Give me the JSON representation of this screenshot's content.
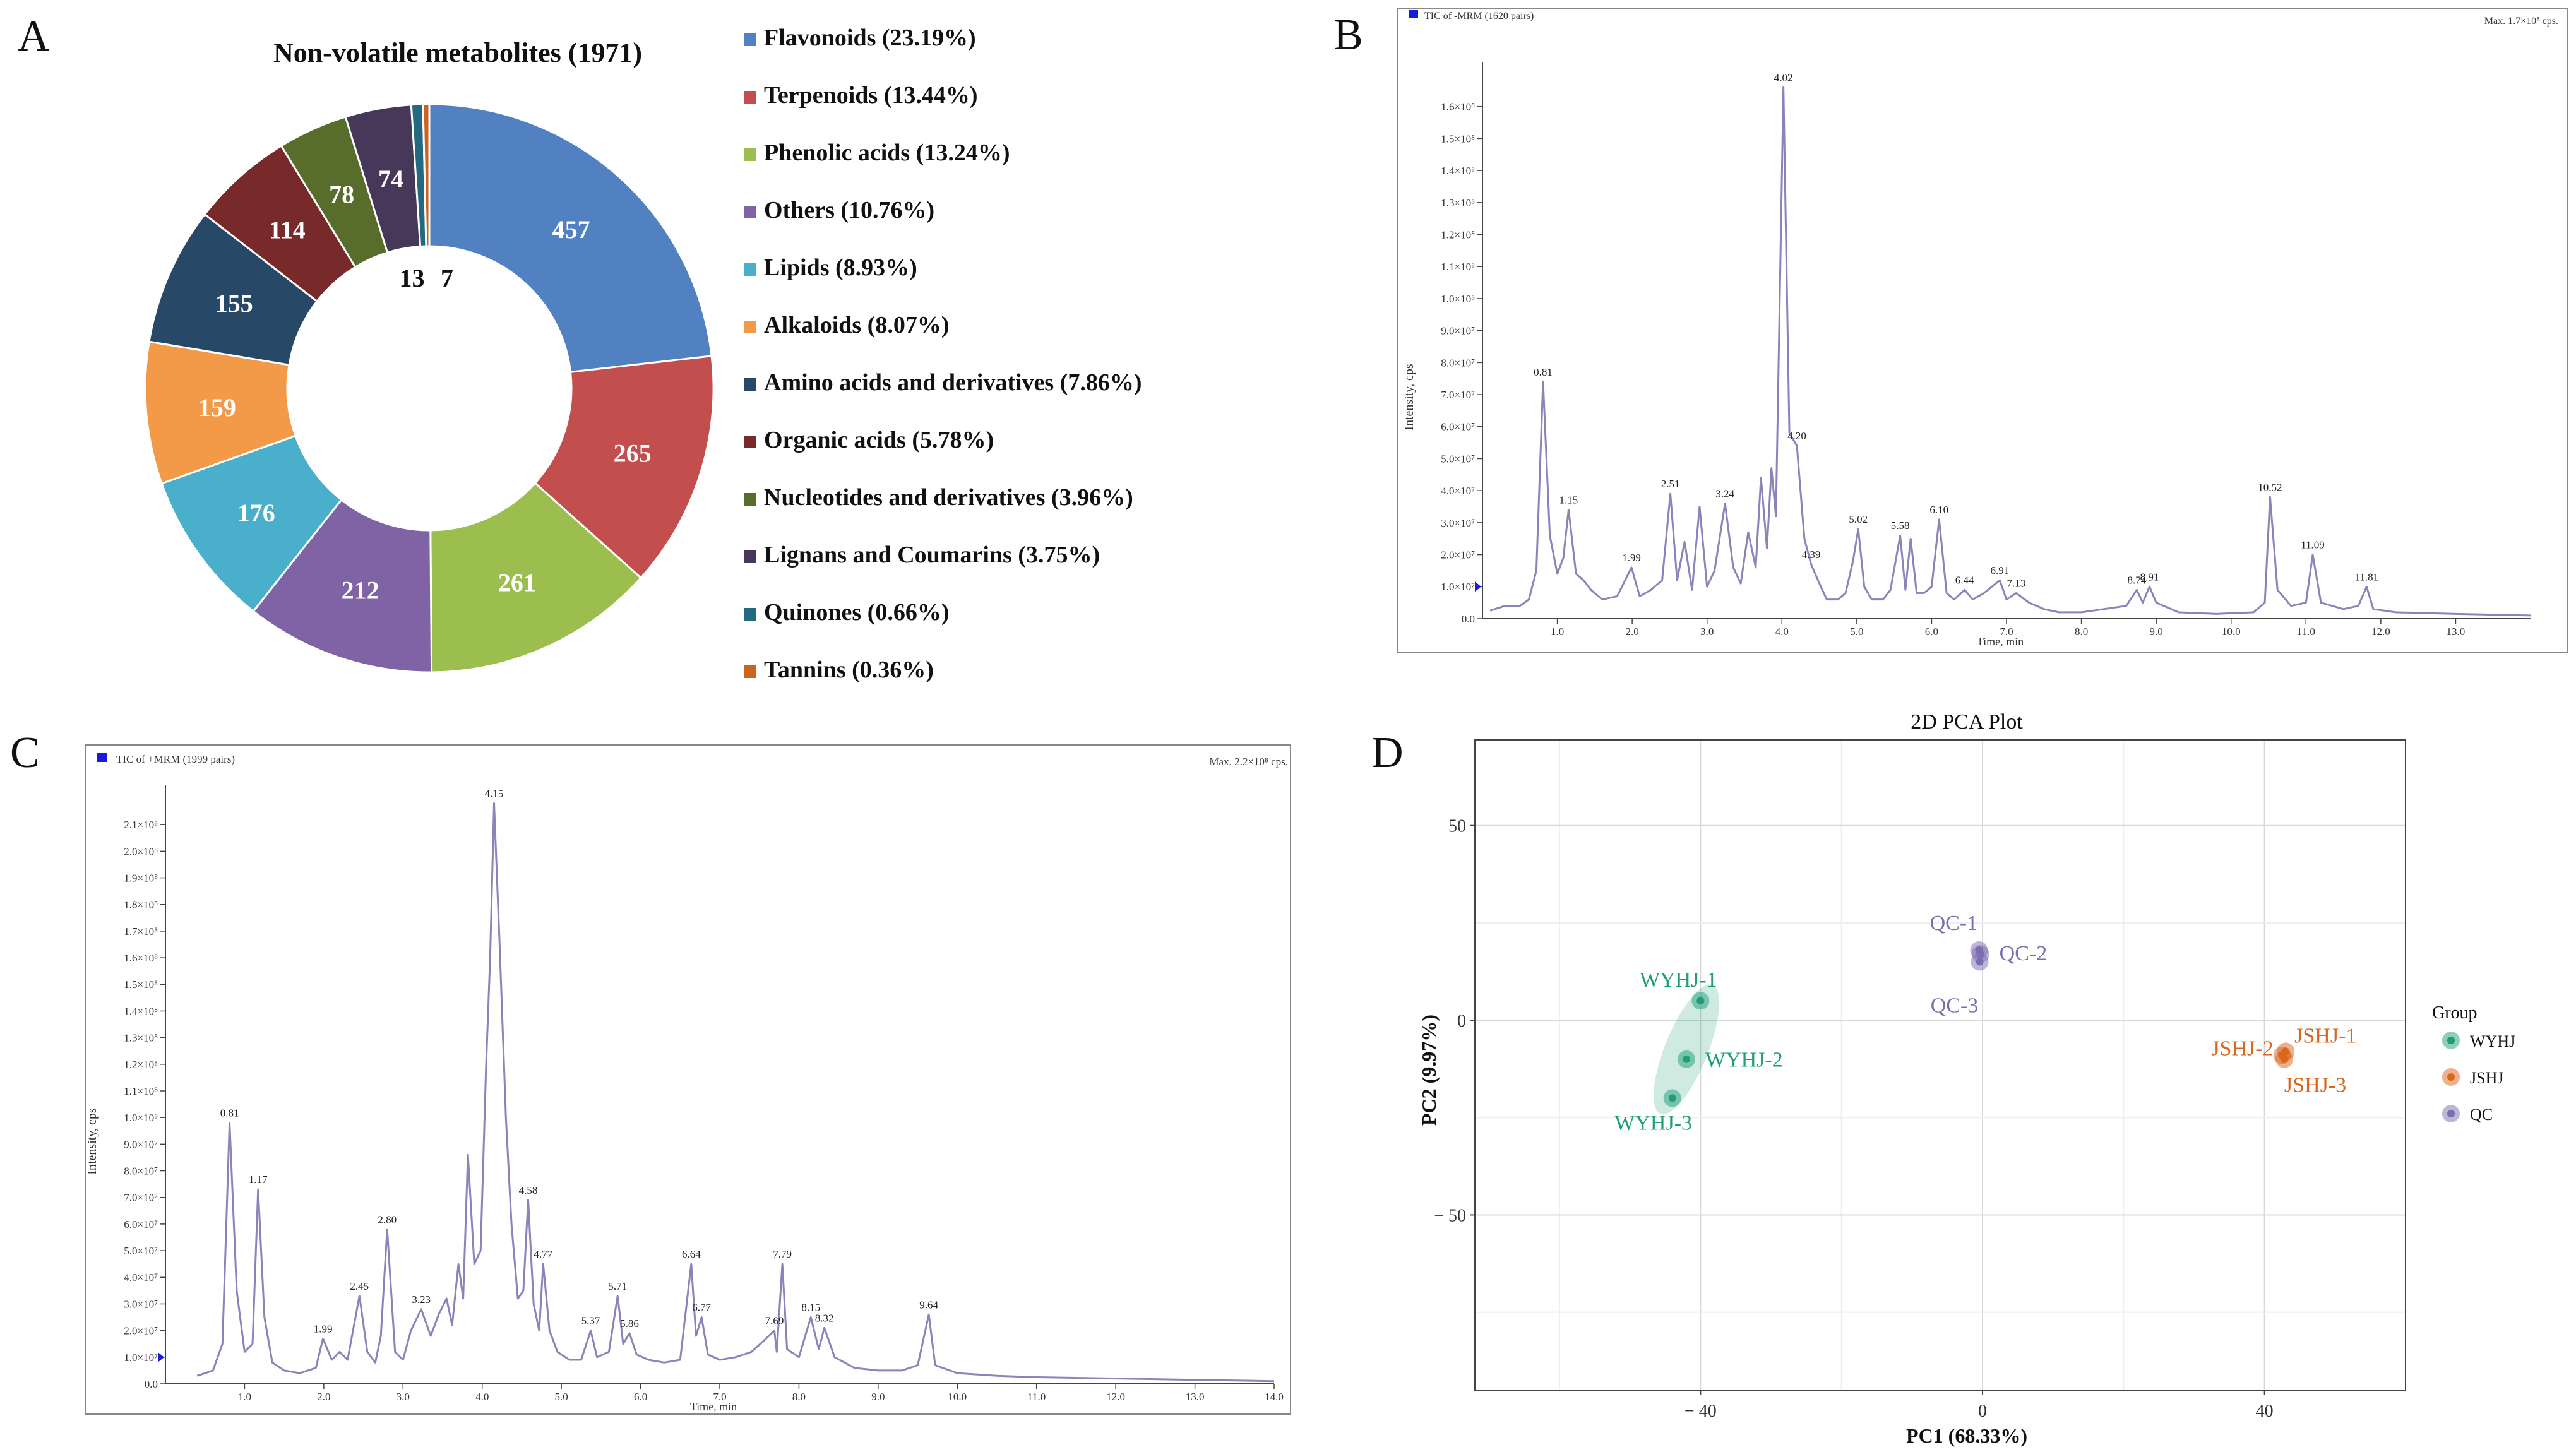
{
  "panels": {
    "a": "A",
    "b": "B",
    "c": "C",
    "d": "D"
  },
  "chart_data": [
    {
      "type": "pie",
      "subtype": "donut",
      "title": "Non-volatile metabolites (1971)",
      "slices": [
        {
          "label": "Flavonoids (23.19%)",
          "value": 457,
          "color": "#5281C1"
        },
        {
          "label": "Terpenoids (13.44%)",
          "value": 265,
          "color": "#C24E4E"
        },
        {
          "label": "Phenolic acids (13.24%)",
          "value": 261,
          "color": "#9CBE4F"
        },
        {
          "label": "Others (10.76%)",
          "value": 212,
          "color": "#7F63A5"
        },
        {
          "label": "Lipids (8.93%)",
          "value": 176,
          "color": "#4AAFCB"
        },
        {
          "label": "Alkaloids (8.07%)",
          "value": 159,
          "color": "#F39A48"
        },
        {
          "label": "Amino acids and derivatives (7.86%)",
          "value": 155,
          "color": "#284868"
        },
        {
          "label": "Organic acids (5.78%)",
          "value": 114,
          "color": "#782A2A"
        },
        {
          "label": "Nucleotides and derivatives (3.96%)",
          "value": 78,
          "color": "#586C2C"
        },
        {
          "label": "Lignans and Coumarins (3.75%)",
          "value": 74,
          "color": "#473759"
        },
        {
          "label": "Quinones (0.66%)",
          "value": 13,
          "color": "#236A80"
        },
        {
          "label": "Tannins (0.36%)",
          "value": 7,
          "color": "#C9631F"
        }
      ],
      "legend_position": "right"
    },
    {
      "type": "line",
      "title": "TIC of -MRM (1620 pairs)",
      "max_label": "Max. 1.7×10⁸ cps.",
      "xlabel": "Time, min",
      "ylabel": "Intensity, cps",
      "xlim": [
        0,
        14.0
      ],
      "ylim": [
        0,
        170000000.0
      ],
      "xticks": [
        "1.0",
        "2.0",
        "3.0",
        "4.0",
        "5.0",
        "6.0",
        "7.0",
        "8.0",
        "9.0",
        "10.0",
        "11.0",
        "12.0",
        "13.0"
      ],
      "yticks": [
        "0.0",
        "1.0×10⁷",
        "2.0×10⁷",
        "3.0×10⁷",
        "4.0×10⁷",
        "5.0×10⁷",
        "6.0×10⁷",
        "7.0×10⁷",
        "8.0×10⁷",
        "9.0×10⁷",
        "1.0×10⁸",
        "1.1×10⁸",
        "1.2×10⁸",
        "1.3×10⁸",
        "1.4×10⁸",
        "1.5×10⁸",
        "1.6×10⁸"
      ],
      "line_color": "#8C84B8",
      "trace": [
        [
          0.1,
          2500000.0
        ],
        [
          0.3,
          4000000.0
        ],
        [
          0.5,
          4000000.0
        ],
        [
          0.62,
          6000000.0
        ],
        [
          0.72,
          15000000.0
        ],
        [
          0.81,
          74000000.0
        ],
        [
          0.9,
          26000000.0
        ],
        [
          1.0,
          14000000.0
        ],
        [
          1.08,
          19000000.0
        ],
        [
          1.15,
          34000000.0
        ],
        [
          1.25,
          14000000.0
        ],
        [
          1.35,
          12000000.0
        ],
        [
          1.45,
          9000000.0
        ],
        [
          1.6,
          6000000.0
        ],
        [
          1.8,
          7000000.0
        ],
        [
          1.99,
          16000000.0
        ],
        [
          2.1,
          7000000.0
        ],
        [
          2.25,
          9000000.0
        ],
        [
          2.4,
          12000000.0
        ],
        [
          2.51,
          39000000.0
        ],
        [
          2.6,
          12000000.0
        ],
        [
          2.7,
          24000000.0
        ],
        [
          2.8,
          9000000.0
        ],
        [
          2.9,
          35000000.0
        ],
        [
          3.0,
          10000000.0
        ],
        [
          3.1,
          15000000.0
        ],
        [
          3.24,
          36000000.0
        ],
        [
          3.35,
          16000000.0
        ],
        [
          3.45,
          11000000.0
        ],
        [
          3.55,
          27000000.0
        ],
        [
          3.65,
          16000000.0
        ],
        [
          3.72,
          44000000.0
        ],
        [
          3.8,
          22000000.0
        ],
        [
          3.86,
          47000000.0
        ],
        [
          3.92,
          32000000.0
        ],
        [
          4.02,
          166000000.0
        ],
        [
          4.1,
          58000000.0
        ],
        [
          4.2,
          54000000.0
        ],
        [
          4.3,
          25000000.0
        ],
        [
          4.39,
          17000000.0
        ],
        [
          4.5,
          11000000.0
        ],
        [
          4.6,
          6000000.0
        ],
        [
          4.75,
          6000000.0
        ],
        [
          4.85,
          8000000.0
        ],
        [
          4.95,
          18000000.0
        ],
        [
          5.02,
          28000000.0
        ],
        [
          5.1,
          10000000.0
        ],
        [
          5.2,
          6000000.0
        ],
        [
          5.35,
          6000000.0
        ],
        [
          5.45,
          9000000.0
        ],
        [
          5.58,
          26000000.0
        ],
        [
          5.65,
          9000000.0
        ],
        [
          5.72,
          25000000.0
        ],
        [
          5.8,
          8000000.0
        ],
        [
          5.9,
          8000000.0
        ],
        [
          6.0,
          10000000.0
        ],
        [
          6.1,
          31000000.0
        ],
        [
          6.2,
          8000000.0
        ],
        [
          6.3,
          6000000.0
        ],
        [
          6.44,
          9000000.0
        ],
        [
          6.55,
          6000000.0
        ],
        [
          6.7,
          8000000.0
        ],
        [
          6.91,
          12000000.0
        ],
        [
          7.0,
          6000000.0
        ],
        [
          7.13,
          8000000.0
        ],
        [
          7.3,
          5000000.0
        ],
        [
          7.5,
          3000000.0
        ],
        [
          7.7,
          2000000.0
        ],
        [
          8.0,
          2000000.0
        ],
        [
          8.3,
          3000000.0
        ],
        [
          8.6,
          4000000.0
        ],
        [
          8.74,
          9000000.0
        ],
        [
          8.82,
          5000000.0
        ],
        [
          8.91,
          10000000.0
        ],
        [
          9.0,
          5000000.0
        ],
        [
          9.3,
          2000000.0
        ],
        [
          9.8,
          1500000.0
        ],
        [
          10.3,
          2000000.0
        ],
        [
          10.45,
          5000000.0
        ],
        [
          10.52,
          38000000.0
        ],
        [
          10.62,
          9000000.0
        ],
        [
          10.8,
          4000000.0
        ],
        [
          11.0,
          5000000.0
        ],
        [
          11.09,
          20000000.0
        ],
        [
          11.2,
          5000000.0
        ],
        [
          11.5,
          3000000.0
        ],
        [
          11.7,
          4000000.0
        ],
        [
          11.81,
          10000000.0
        ],
        [
          11.9,
          3000000.0
        ],
        [
          12.2,
          2000000.0
        ],
        [
          13.0,
          1500000.0
        ],
        [
          14.0,
          1000000.0
        ]
      ],
      "annotations": [
        {
          "x": 0.81,
          "label": "0.81"
        },
        {
          "x": 1.15,
          "label": "1.15"
        },
        {
          "x": 1.99,
          "label": "1.99"
        },
        {
          "x": 2.51,
          "label": "2.51"
        },
        {
          "x": 3.24,
          "label": "3.24"
        },
        {
          "x": 4.02,
          "label": "4.02"
        },
        {
          "x": 4.2,
          "label": "4.20"
        },
        {
          "x": 4.39,
          "label": "4.39"
        },
        {
          "x": 5.02,
          "label": "5.02"
        },
        {
          "x": 5.58,
          "label": "5.58"
        },
        {
          "x": 6.1,
          "label": "6.10"
        },
        {
          "x": 6.44,
          "label": "6.44"
        },
        {
          "x": 6.91,
          "label": "6.91"
        },
        {
          "x": 7.13,
          "label": "7.13"
        },
        {
          "x": 8.74,
          "label": "8.74"
        },
        {
          "x": 8.91,
          "label": "8.91"
        },
        {
          "x": 10.52,
          "label": "10.52"
        },
        {
          "x": 11.09,
          "label": "11.09"
        },
        {
          "x": 11.81,
          "label": "11.81"
        }
      ]
    },
    {
      "type": "line",
      "title": "TIC of +MRM (1999 pairs)",
      "max_label": "Max. 2.2×10⁸ cps.",
      "xlabel": "Time, min",
      "ylabel": "Intensity, cps",
      "xlim": [
        0,
        14.0
      ],
      "ylim": [
        0,
        220000000.0
      ],
      "xticks": [
        "1.0",
        "2.0",
        "3.0",
        "4.0",
        "5.0",
        "6.0",
        "7.0",
        "8.0",
        "9.0",
        "10.0",
        "11.0",
        "12.0",
        "13.0",
        "14.0"
      ],
      "yticks": [
        "0.0",
        "1.0×10⁷",
        "2.0×10⁷",
        "3.0×10⁷",
        "4.0×10⁷",
        "5.0×10⁷",
        "6.0×10⁷",
        "7.0×10⁷",
        "8.0×10⁷",
        "9.0×10⁷",
        "1.0×10⁸",
        "1.1×10⁸",
        "1.2×10⁸",
        "1.3×10⁸",
        "1.4×10⁸",
        "1.5×10⁸",
        "1.6×10⁸",
        "1.7×10⁸",
        "1.8×10⁸",
        "1.9×10⁸",
        "2.0×10⁸",
        "2.1×10⁸"
      ],
      "line_color": "#8C84B8",
      "trace": [
        [
          0.4,
          3000000.0
        ],
        [
          0.6,
          5000000.0
        ],
        [
          0.72,
          15000000.0
        ],
        [
          0.81,
          98000000.0
        ],
        [
          0.9,
          35000000.0
        ],
        [
          1.0,
          12000000.0
        ],
        [
          1.1,
          15000000.0
        ],
        [
          1.17,
          73000000.0
        ],
        [
          1.25,
          25000000.0
        ],
        [
          1.35,
          8000000.0
        ],
        [
          1.5,
          5000000.0
        ],
        [
          1.7,
          4000000.0
        ],
        [
          1.9,
          6000000.0
        ],
        [
          1.99,
          17000000.0
        ],
        [
          2.1,
          9000000.0
        ],
        [
          2.2,
          12000000.0
        ],
        [
          2.3,
          9000000.0
        ],
        [
          2.45,
          33000000.0
        ],
        [
          2.55,
          12000000.0
        ],
        [
          2.65,
          8000000.0
        ],
        [
          2.72,
          18000000.0
        ],
        [
          2.8,
          58000000.0
        ],
        [
          2.9,
          12000000.0
        ],
        [
          3.0,
          9000000.0
        ],
        [
          3.1,
          20000000.0
        ],
        [
          3.23,
          28000000.0
        ],
        [
          3.35,
          18000000.0
        ],
        [
          3.45,
          26000000.0
        ],
        [
          3.55,
          32000000.0
        ],
        [
          3.62,
          22000000.0
        ],
        [
          3.7,
          45000000.0
        ],
        [
          3.76,
          32000000.0
        ],
        [
          3.82,
          86000000.0
        ],
        [
          3.9,
          45000000.0
        ],
        [
          3.98,
          50000000.0
        ],
        [
          4.05,
          120000000.0
        ],
        [
          4.1,
          160000000.0
        ],
        [
          4.15,
          218000000.0
        ],
        [
          4.22,
          165000000.0
        ],
        [
          4.3,
          100000000.0
        ],
        [
          4.37,
          60000000.0
        ],
        [
          4.45,
          32000000.0
        ],
        [
          4.52,
          35000000.0
        ],
        [
          4.58,
          69000000.0
        ],
        [
          4.65,
          30000000.0
        ],
        [
          4.72,
          20000000.0
        ],
        [
          4.77,
          45000000.0
        ],
        [
          4.85,
          20000000.0
        ],
        [
          4.95,
          12000000.0
        ],
        [
          5.1,
          9000000.0
        ],
        [
          5.25,
          9000000.0
        ],
        [
          5.37,
          20000000.0
        ],
        [
          5.45,
          10000000.0
        ],
        [
          5.6,
          12000000.0
        ],
        [
          5.71,
          33000000.0
        ],
        [
          5.78,
          15000000.0
        ],
        [
          5.86,
          19000000.0
        ],
        [
          5.95,
          11000000.0
        ],
        [
          6.1,
          9000000.0
        ],
        [
          6.3,
          8000000.0
        ],
        [
          6.5,
          9000000.0
        ],
        [
          6.64,
          45000000.0
        ],
        [
          6.7,
          18000000.0
        ],
        [
          6.77,
          25000000.0
        ],
        [
          6.85,
          11000000.0
        ],
        [
          7.0,
          9000000.0
        ],
        [
          7.2,
          10000000.0
        ],
        [
          7.4,
          12000000.0
        ],
        [
          7.55,
          16000000.0
        ],
        [
          7.69,
          20000000.0
        ],
        [
          7.72,
          12000000.0
        ],
        [
          7.79,
          45000000.0
        ],
        [
          7.85,
          13000000.0
        ],
        [
          8.0,
          10000000.0
        ],
        [
          8.15,
          25000000.0
        ],
        [
          8.25,
          13000000.0
        ],
        [
          8.32,
          21000000.0
        ],
        [
          8.45,
          10000000.0
        ],
        [
          8.7,
          6000000.0
        ],
        [
          9.0,
          5000000.0
        ],
        [
          9.3,
          5000000.0
        ],
        [
          9.5,
          7000000.0
        ],
        [
          9.64,
          26000000.0
        ],
        [
          9.72,
          7000000.0
        ],
        [
          10.0,
          4000000.0
        ],
        [
          10.5,
          3000000.0
        ],
        [
          11.0,
          2500000.0
        ],
        [
          12.0,
          2000000.0
        ],
        [
          13.0,
          1500000.0
        ],
        [
          14.0,
          1000000.0
        ]
      ],
      "annotations": [
        {
          "x": 0.81,
          "label": "0.81"
        },
        {
          "x": 1.17,
          "label": "1.17"
        },
        {
          "x": 1.99,
          "label": "1.99"
        },
        {
          "x": 2.45,
          "label": "2.45"
        },
        {
          "x": 2.8,
          "label": "2.80"
        },
        {
          "x": 3.23,
          "label": "3.23"
        },
        {
          "x": 4.15,
          "label": "4.15"
        },
        {
          "x": 4.58,
          "label": "4.58"
        },
        {
          "x": 4.77,
          "label": "4.77"
        },
        {
          "x": 5.37,
          "label": "5.37"
        },
        {
          "x": 5.71,
          "label": "5.71"
        },
        {
          "x": 5.86,
          "label": "5.86"
        },
        {
          "x": 6.64,
          "label": "6.64"
        },
        {
          "x": 6.77,
          "label": "6.77"
        },
        {
          "x": 7.69,
          "label": "7.69"
        },
        {
          "x": 7.79,
          "label": "7.79"
        },
        {
          "x": 8.15,
          "label": "8.15"
        },
        {
          "x": 8.32,
          "label": "8.32"
        },
        {
          "x": 9.64,
          "label": "9.64"
        }
      ]
    },
    {
      "type": "scatter",
      "title": "2D PCA Plot",
      "xlabel": "PC1 (68.33%)",
      "ylabel": "PC2 (9.97%)",
      "xlim": [
        -72,
        60
      ],
      "ylim": [
        -95,
        72
      ],
      "xticks": [
        -40,
        0,
        40
      ],
      "xtick_labels": [
        "− 40",
        "0",
        "40"
      ],
      "yticks": [
        -50,
        0,
        50
      ],
      "ytick_labels": [
        "− 50",
        "0",
        "50"
      ],
      "grid": true,
      "legend_title": "Group",
      "legend_position": "right",
      "series": [
        {
          "name": "WYHJ",
          "color": "#1E9E76",
          "points": [
            {
              "label": "WYHJ-1",
              "x": -40,
              "y": 5
            },
            {
              "label": "WYHJ-2",
              "x": -42,
              "y": -10
            },
            {
              "label": "WYHJ-3",
              "x": -44,
              "y": -20
            }
          ]
        },
        {
          "name": "JSHJ",
          "color": "#D9661B",
          "points": [
            {
              "label": "JSHJ-1",
              "x": 43,
              "y": -8
            },
            {
              "label": "JSHJ-2",
              "x": 42.5,
              "y": -9
            },
            {
              "label": "JSHJ-3",
              "x": 42.8,
              "y": -10
            }
          ]
        },
        {
          "name": "QC",
          "color": "#7C6DB0",
          "points": [
            {
              "label": "QC-1",
              "x": -0.5,
              "y": 18
            },
            {
              "label": "QC-2",
              "x": -0.3,
              "y": 17
            },
            {
              "label": "QC-3",
              "x": -0.4,
              "y": 15
            }
          ]
        }
      ]
    }
  ]
}
